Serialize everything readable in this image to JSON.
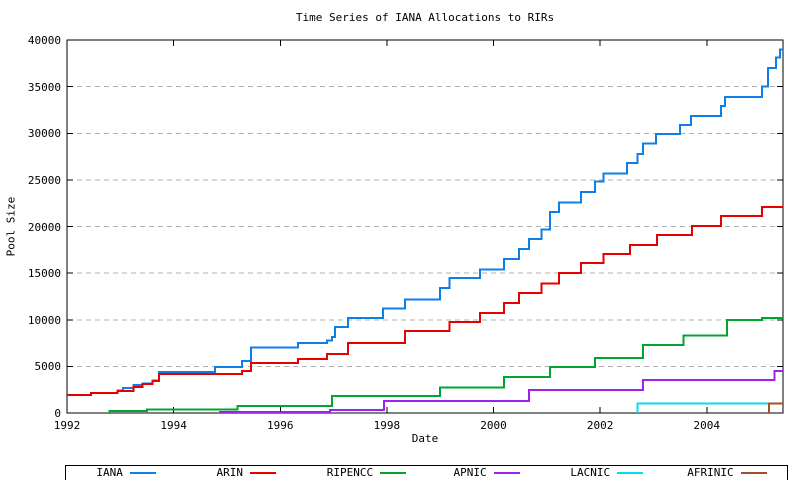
{
  "title": "Time Series of IANA Allocations to RIRs",
  "chart_data": {
    "type": "line",
    "step": true,
    "title": "Time Series of IANA Allocations to RIRs",
    "xlabel": "Date",
    "ylabel": "Pool Size",
    "xlim": [
      1992,
      2005.43
    ],
    "ylim": [
      0,
      40000
    ],
    "x_ticks": [
      1992,
      1994,
      1996,
      1998,
      2000,
      2002,
      2004
    ],
    "y_ticks": [
      0,
      5000,
      10000,
      15000,
      20000,
      25000,
      30000,
      35000,
      40000
    ],
    "grid": "horizontal dashed gridlines at 5000-35000",
    "legend_position": "bottom",
    "frame_color": "#000000",
    "grid_color": "#b3b3b3",
    "series": [
      {
        "name": "IANA",
        "color": "#0d7fe8",
        "points": [
          [
            1992,
            1950
          ],
          [
            1992.45,
            2150
          ],
          [
            1992.95,
            2400
          ],
          [
            1993.05,
            2680
          ],
          [
            1993.25,
            3000
          ],
          [
            1993.42,
            3170
          ],
          [
            1993.6,
            3500
          ],
          [
            1993.73,
            4400
          ],
          [
            1994.78,
            4950
          ],
          [
            1995.28,
            5600
          ],
          [
            1995.45,
            7000
          ],
          [
            1996.33,
            7530
          ],
          [
            1996.88,
            7750
          ],
          [
            1996.97,
            8170
          ],
          [
            1997.03,
            9240
          ],
          [
            1997.27,
            10200
          ],
          [
            1997.93,
            11180
          ],
          [
            1998.34,
            12150
          ],
          [
            1999.0,
            13400
          ],
          [
            1999.17,
            14500
          ],
          [
            1999.75,
            15400
          ],
          [
            2000.2,
            16500
          ],
          [
            2000.48,
            17600
          ],
          [
            2000.67,
            18650
          ],
          [
            2000.9,
            19700
          ],
          [
            2001.06,
            21550
          ],
          [
            2001.23,
            22600
          ],
          [
            2001.64,
            23700
          ],
          [
            2001.9,
            24800
          ],
          [
            2002.06,
            25700
          ],
          [
            2002.5,
            26800
          ],
          [
            2002.7,
            27800
          ],
          [
            2002.8,
            28900
          ],
          [
            2003.05,
            29900
          ],
          [
            2003.5,
            30900
          ],
          [
            2003.7,
            31850
          ],
          [
            2004.27,
            32900
          ],
          [
            2004.34,
            33900
          ],
          [
            2005.04,
            35000
          ],
          [
            2005.15,
            37000
          ],
          [
            2005.3,
            38100
          ],
          [
            2005.37,
            39000
          ]
        ]
      },
      {
        "name": "ARIN",
        "color": "#e60000",
        "points": [
          [
            1992,
            1950
          ],
          [
            1992.45,
            2150
          ],
          [
            1992.95,
            2360
          ],
          [
            1993.25,
            2790
          ],
          [
            1993.42,
            3100
          ],
          [
            1993.6,
            3430
          ],
          [
            1993.73,
            4180
          ],
          [
            1995.28,
            4500
          ],
          [
            1995.45,
            5360
          ],
          [
            1996.33,
            5790
          ],
          [
            1996.88,
            6330
          ],
          [
            1997.27,
            7530
          ],
          [
            1998.34,
            8820
          ],
          [
            1999.17,
            9750
          ],
          [
            1999.75,
            10700
          ],
          [
            2000.2,
            11800
          ],
          [
            2000.48,
            12870
          ],
          [
            2000.9,
            13900
          ],
          [
            2001.23,
            15000
          ],
          [
            2001.64,
            16080
          ],
          [
            2002.06,
            17050
          ],
          [
            2002.56,
            18000
          ],
          [
            2003.07,
            19100
          ],
          [
            2003.72,
            20050
          ],
          [
            2004.27,
            21100
          ],
          [
            2005.04,
            22100
          ]
        ]
      },
      {
        "name": "RIPENCC",
        "color": "#00a52f",
        "points": [
          [
            1992.8,
            200
          ],
          [
            1993.5,
            400
          ],
          [
            1995.2,
            750
          ],
          [
            1996.97,
            1820
          ],
          [
            1999.0,
            2760
          ],
          [
            2000.2,
            3860
          ],
          [
            2001.06,
            4930
          ],
          [
            2001.9,
            5900
          ],
          [
            2002.8,
            7300
          ],
          [
            2003.56,
            8300
          ],
          [
            2004.38,
            9970
          ],
          [
            2005.04,
            10200
          ]
        ]
      },
      {
        "name": "APNIC",
        "color": "#a020f0",
        "points": [
          [
            1994.87,
            120
          ],
          [
            1996.93,
            320
          ],
          [
            1997.95,
            1300
          ],
          [
            2000.67,
            2470
          ],
          [
            2002.8,
            3540
          ],
          [
            2005.27,
            4500
          ]
        ]
      },
      {
        "name": "LACNIC",
        "color": "#00e0e8",
        "points": [
          [
            2002.7,
            1000
          ]
        ]
      },
      {
        "name": "AFRINIC",
        "color": "#a0522d",
        "points": [
          [
            2005.17,
            1000
          ]
        ]
      }
    ]
  }
}
